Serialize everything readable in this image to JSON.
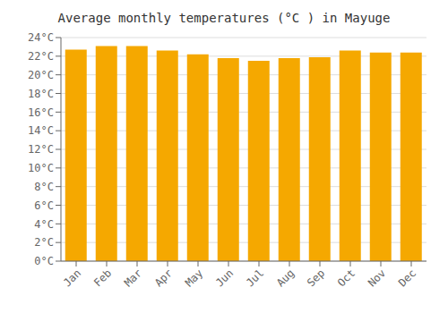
{
  "chart_data": {
    "type": "bar",
    "title": "Average monthly temperatures (°C ) in Mayuge",
    "categories": [
      "Jan",
      "Feb",
      "Mar",
      "Apr",
      "May",
      "Jun",
      "Jul",
      "Aug",
      "Sep",
      "Oct",
      "Nov",
      "Dec"
    ],
    "values": [
      22.7,
      23.1,
      23.1,
      22.6,
      22.2,
      21.8,
      21.5,
      21.8,
      21.9,
      22.6,
      22.4,
      22.4
    ],
    "color": "#F5A800",
    "ylim": [
      0,
      24
    ],
    "yticks": [
      {
        "value": 0,
        "label": "0°C"
      },
      {
        "value": 2,
        "label": "2°C"
      },
      {
        "value": 4,
        "label": "4°C"
      },
      {
        "value": 6,
        "label": "6°C"
      },
      {
        "value": 8,
        "label": "8°C"
      },
      {
        "value": 10,
        "label": "10°C"
      },
      {
        "value": 12,
        "label": "12°C"
      },
      {
        "value": 14,
        "label": "14°C"
      },
      {
        "value": 16,
        "label": "16°C"
      },
      {
        "value": 18,
        "label": "18°C"
      },
      {
        "value": 20,
        "label": "20°C"
      },
      {
        "value": 22,
        "label": "22°C"
      },
      {
        "value": 24,
        "label": "24°C"
      }
    ],
    "grid": true
  }
}
